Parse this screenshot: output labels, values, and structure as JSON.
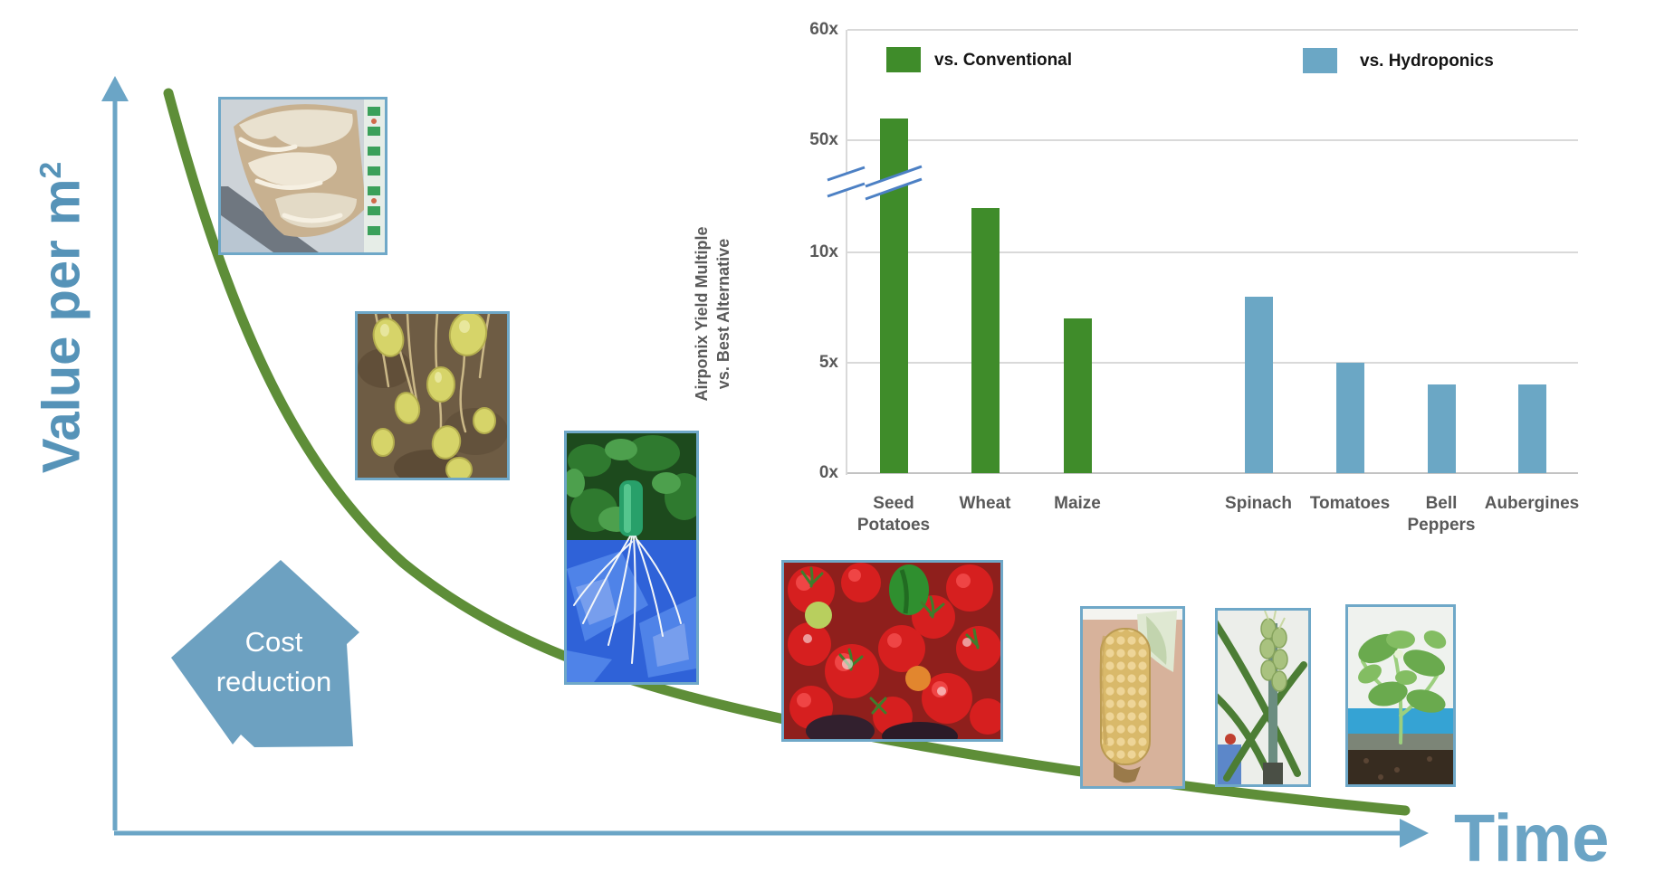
{
  "slide": {
    "y_axis_label_main": "Value per m",
    "y_axis_label_sup": "2",
    "x_axis_label": "Time",
    "cost_arrow": {
      "line1": "Cost",
      "line2": "reduction"
    }
  },
  "chart_data": {
    "type": "bar",
    "ylabel_line1": "Airponix Yield Multiple",
    "ylabel_line2": "vs. Best Alternative",
    "ylim": [
      0,
      60
    ],
    "axis_break_between": [
      13,
      50
    ],
    "grid": true,
    "legend_position": "top",
    "y_ticks": [
      {
        "label": "0x",
        "value": 0
      },
      {
        "label": "5x",
        "value": 5
      },
      {
        "label": "10x",
        "value": 10
      },
      {
        "label": "50x",
        "value": 50
      },
      {
        "label": "60x",
        "value": 60
      }
    ],
    "legend": [
      {
        "label": "vs. Conventional",
        "color": "#3f8c2a"
      },
      {
        "label": "vs. Hydroponics",
        "color": "#6ba7c5"
      }
    ],
    "bars": [
      {
        "category": "Seed Potatoes",
        "value": 52,
        "series": "vs. Conventional"
      },
      {
        "category": "Wheat",
        "value": 12,
        "series": "vs. Conventional"
      },
      {
        "category": "Maize",
        "value": 7,
        "series": "vs. Conventional"
      },
      {
        "category": "Spinach",
        "value": 8,
        "series": "vs. Hydroponics"
      },
      {
        "category": "Tomatoes",
        "value": 5,
        "series": "vs. Hydroponics"
      },
      {
        "category": "Bell Peppers",
        "value": 4,
        "series": "vs. Hydroponics"
      },
      {
        "category": "Aubergines",
        "value": 4,
        "series": "vs. Hydroponics"
      }
    ]
  },
  "images": [
    {
      "name": "aeroponic-roots-photo"
    },
    {
      "name": "potatoes-on-roots-photo"
    },
    {
      "name": "leafy-plant-roots-photo"
    },
    {
      "name": "tomatoes-harvest-photo"
    },
    {
      "name": "corn-cob-photo"
    },
    {
      "name": "wheat-stalk-photo"
    },
    {
      "name": "aubergine-seedling-photo"
    }
  ],
  "colors": {
    "curve_green": "#5e8e38",
    "axis_blue": "#6ba5c6",
    "title_blue": "#5693b8",
    "arrow_shape_blue": "#6da1c1",
    "break_mark_blue": "#4c80c4",
    "gridline_gray": "#d9d9d9",
    "label_gray": "#595959"
  }
}
